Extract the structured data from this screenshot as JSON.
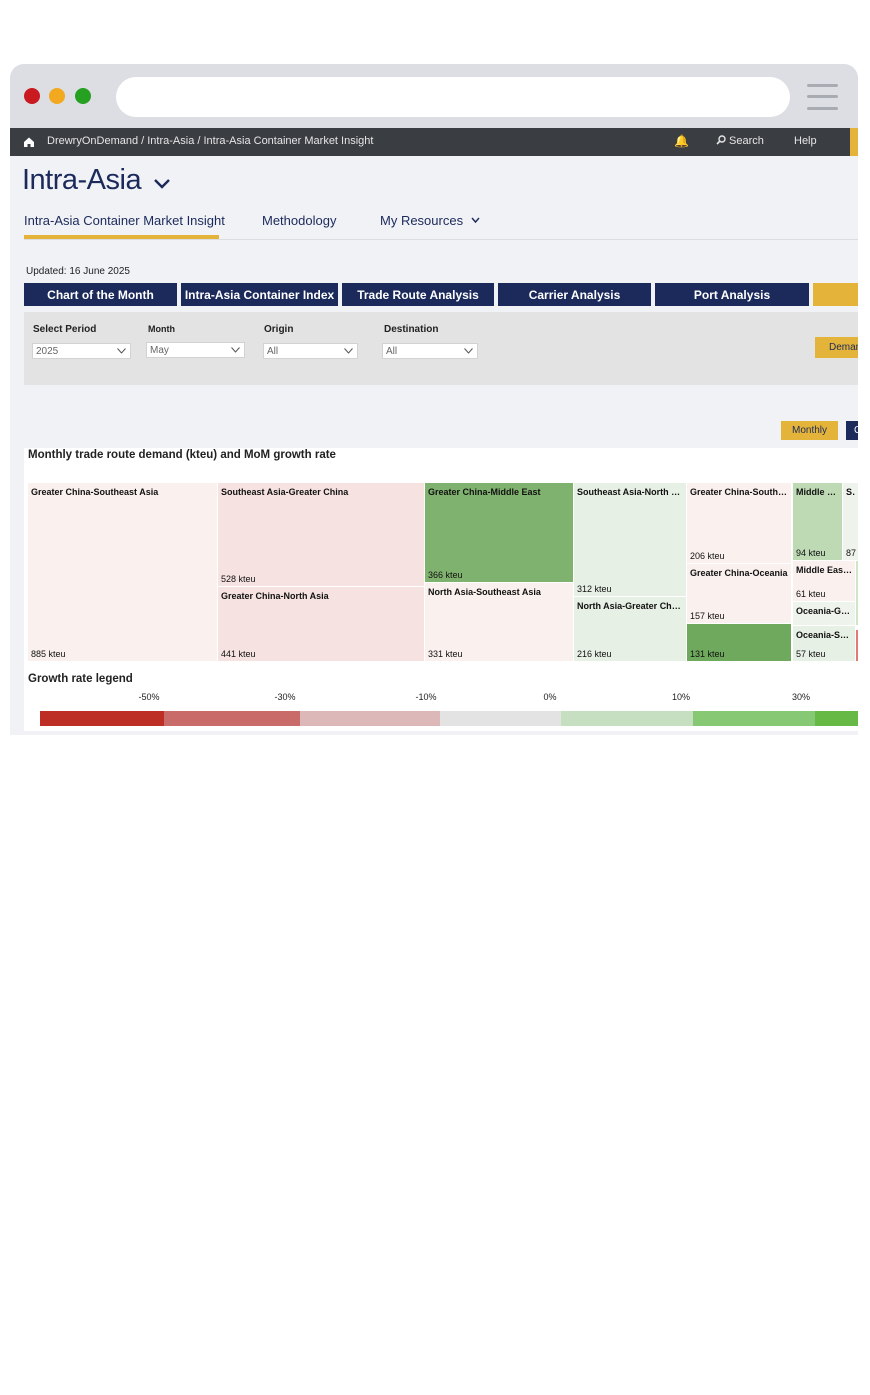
{
  "nav": {
    "breadcrumb": "DrewryOnDemand / Intra-Asia / Intra-Asia Container Market Insight",
    "search": "Search",
    "help": "Help"
  },
  "page": {
    "title": "Intra-Asia",
    "subtabs": [
      "Intra-Asia Container Market Insight",
      "Methodology",
      "My Resources"
    ],
    "updated": "Updated: 16 June 2025"
  },
  "sections": [
    "Chart of the Month",
    "Intra-Asia Container Index",
    "Trade Route Analysis",
    "Carrier Analysis",
    "Port Analysis"
  ],
  "filters": {
    "period_label": "Select Period",
    "period_value": "2025",
    "month_label": "Month",
    "month_value": "May",
    "origin_label": "Origin",
    "origin_value": "All",
    "destination_label": "Destination",
    "destination_value": "All",
    "demand_button": "Demand"
  },
  "toggle": {
    "monthly": "Monthly",
    "other": "Cumulative"
  },
  "chart_title": "Monthly trade route demand (kteu) and MoM growth rate",
  "chart_data": {
    "type": "treemap",
    "title": "Monthly trade route demand (kteu) and MoM growth rate",
    "unit": "kteu",
    "tiles": [
      {
        "name": "Greater China-Southeast Asia",
        "value": 885,
        "label": "885 kteu",
        "color": "#faf0ee"
      },
      {
        "name": "Southeast Asia-Greater China",
        "value": 528,
        "label": "528 kteu",
        "color": "#f6e3e1"
      },
      {
        "name": "Greater China-North Asia",
        "value": 441,
        "label": "441 kteu",
        "color": "#f6e3e1"
      },
      {
        "name": "Greater China-Middle East",
        "value": 366,
        "label": "366 kteu",
        "color": "#80b26f"
      },
      {
        "name": "North Asia-Southeast Asia",
        "value": 331,
        "label": "331 kteu",
        "color": "#faf0ee"
      },
      {
        "name": "Southeast Asia-North …",
        "value": 312,
        "label": "312 kteu",
        "color": "#e7f0e4"
      },
      {
        "name": "North Asia-Greater Chi…",
        "value": 216,
        "label": "216 kteu",
        "color": "#e7f0e4"
      },
      {
        "name": "Greater China-South …",
        "value": 206,
        "label": "206 kteu",
        "color": "#faf0ee"
      },
      {
        "name": "Greater China-Oceania",
        "value": 157,
        "label": "157 kteu",
        "color": "#faf0ee"
      },
      {
        "name": "",
        "value": 131,
        "label": "131 kteu",
        "color": "#6ea95d"
      },
      {
        "name": "Middle …",
        "value": 94,
        "label": "94 kteu",
        "color": "#bedab4"
      },
      {
        "name": "So",
        "value": 87,
        "label": "87",
        "color": "#eef4ec"
      },
      {
        "name": "Middle Eas…",
        "value": 61,
        "label": "61 kteu",
        "color": "#faf0ee"
      },
      {
        "name": "Oceania-G…",
        "value": null,
        "label": "",
        "color": "#eef4ec"
      },
      {
        "name": "Oceania-S…",
        "value": 57,
        "label": "57 kteu",
        "color": "#e7f0e4"
      }
    ],
    "legend": {
      "title": "Growth rate legend",
      "ticks": [
        "-50%",
        "-30%",
        "-10%",
        "0%",
        "10%",
        "30%"
      ],
      "colors": [
        "#bd2f25",
        "#c96b69",
        "#dcb8b8",
        "#e3e3e3",
        "#c6dfc0",
        "#87c874",
        "#67b946"
      ]
    }
  }
}
